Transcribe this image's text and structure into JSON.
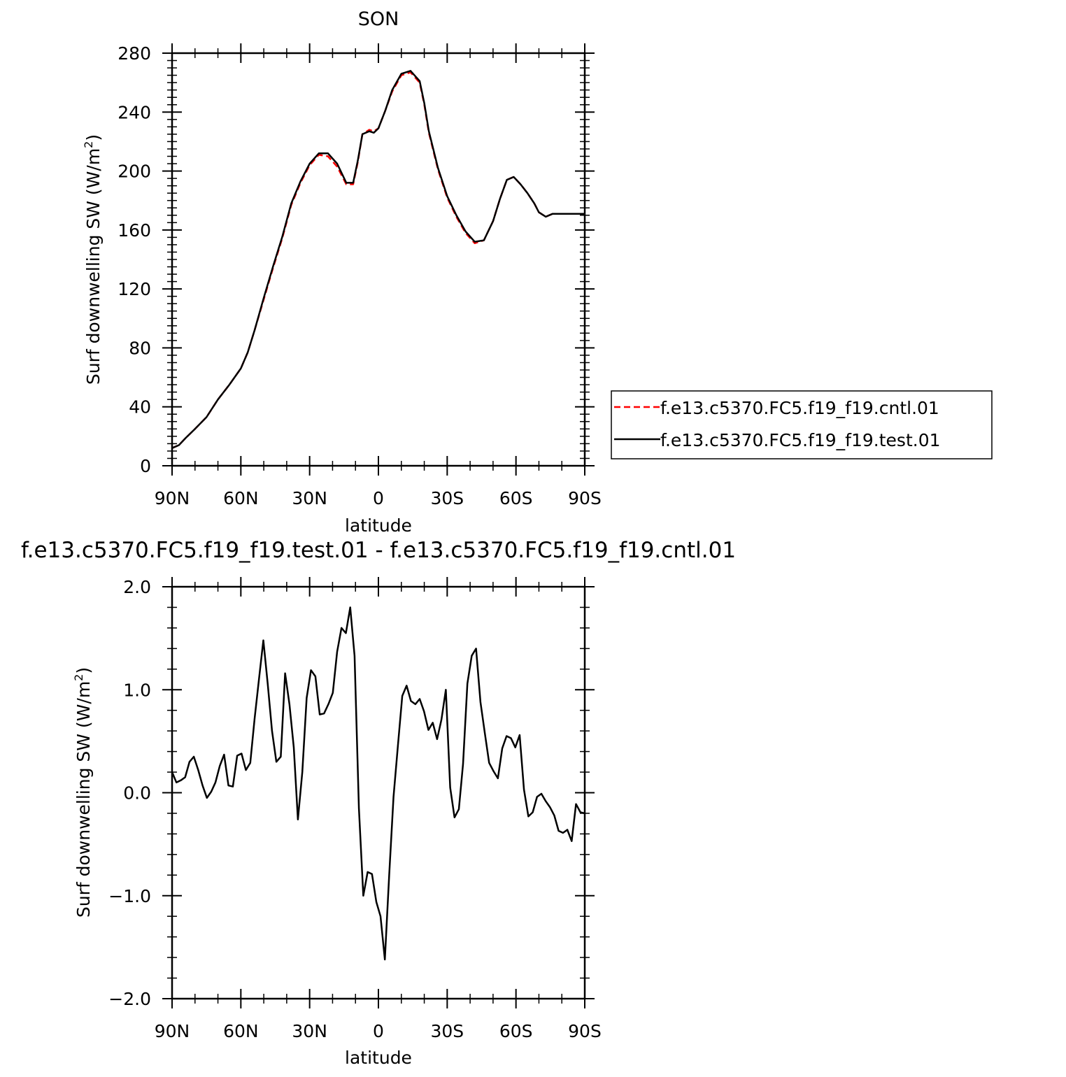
{
  "chart_data": [
    {
      "type": "line",
      "title": "SON",
      "xlabel": "latitude",
      "ylabel": "Surf downwelling SW (W/m²)",
      "ylabel_main": "Surf downwelling SW (W/m",
      "ylabel_sup": "2",
      "ylabel_tail": ")",
      "xlim": [
        90,
        -90
      ],
      "ylim": [
        0,
        280
      ],
      "x_ticks": [
        90,
        60,
        30,
        0,
        -30,
        -60,
        -90
      ],
      "x_tick_labels": [
        "90N",
        "60N",
        "30N",
        "0",
        "30S",
        "60S",
        "90S"
      ],
      "y_ticks": [
        0,
        40,
        80,
        120,
        160,
        200,
        240,
        280
      ],
      "y_tick_labels": [
        "0",
        "40",
        "80",
        "120",
        "160",
        "200",
        "240",
        "280"
      ],
      "grid": false,
      "legend_position": "right",
      "series": [
        {
          "name": "f.e13.c5370.FC5.f19_f19.cntl.01",
          "color": "#ff0000",
          "style": "dashed",
          "x": [
            90,
            87,
            84,
            80,
            75,
            70,
            65,
            60,
            57,
            54,
            50,
            46,
            42,
            38,
            34,
            30,
            26,
            22,
            18,
            14,
            11,
            9,
            7,
            4,
            2,
            0,
            -3,
            -6,
            -10,
            -14,
            -18,
            -20,
            -22,
            -26,
            -30,
            -34,
            -38,
            -42,
            -46,
            -50,
            -53,
            -56,
            -59,
            -62,
            -65,
            -68,
            -70,
            -73,
            -76,
            -80,
            -84,
            -87,
            -90
          ],
          "y": [
            12,
            14,
            19,
            25,
            33,
            45,
            55,
            66,
            77,
            92,
            113,
            134,
            154,
            177,
            192,
            204,
            211,
            210,
            203,
            191,
            191,
            206,
            225,
            228,
            227,
            229,
            241,
            254,
            265,
            267,
            260,
            245,
            226,
            201,
            182,
            169,
            158,
            151,
            153,
            166,
            181,
            194,
            196,
            191,
            185,
            178,
            172,
            169,
            171,
            171,
            171,
            171,
            171
          ]
        },
        {
          "name": "f.e13.c5370.FC5.f19_f19.test.01",
          "color": "#000000",
          "style": "solid",
          "x": [
            90,
            87,
            84,
            80,
            75,
            70,
            65,
            60,
            57,
            54,
            50,
            46,
            42,
            38,
            34,
            30,
            26,
            22,
            18,
            14,
            11,
            9,
            7,
            4,
            2,
            0,
            -3,
            -6,
            -10,
            -14,
            -18,
            -20,
            -22,
            -26,
            -30,
            -34,
            -38,
            -42,
            -46,
            -50,
            -53,
            -56,
            -59,
            -62,
            -65,
            -68,
            -70,
            -73,
            -76,
            -80,
            -84,
            -87,
            -90
          ],
          "y": [
            12,
            14,
            19,
            25,
            33,
            45,
            55,
            66,
            77,
            92,
            114,
            135,
            155,
            178,
            193,
            205,
            212,
            212,
            205,
            192,
            192,
            207,
            225,
            227,
            226,
            229,
            241,
            255,
            266,
            268,
            261,
            246,
            227,
            202,
            183,
            170,
            159,
            152,
            153,
            166,
            181,
            194,
            196,
            191,
            185,
            178,
            172,
            169,
            171,
            171,
            171,
            171,
            171
          ]
        }
      ]
    },
    {
      "type": "line",
      "title": "f.e13.c5370.FC5.f19_f19.test.01 - f.e13.c5370.FC5.f19_f19.cntl.01",
      "xlabel": "latitude",
      "ylabel": "Surf downwelling SW (W/m²)",
      "ylabel_main": "Surf downwelling SW (W/m",
      "ylabel_sup": "2",
      "ylabel_tail": ")",
      "xlim": [
        90,
        -90
      ],
      "ylim": [
        -2.0,
        2.0
      ],
      "x_ticks": [
        90,
        60,
        30,
        0,
        -30,
        -60,
        -90
      ],
      "x_tick_labels": [
        "90N",
        "60N",
        "30N",
        "0",
        "30S",
        "60S",
        "90S"
      ],
      "y_ticks": [
        -2.0,
        -1.0,
        0.0,
        1.0,
        2.0
      ],
      "y_tick_labels": [
        "−2.0",
        "−1.0",
        "0.0",
        "1.0",
        "2.0"
      ],
      "grid": false,
      "series": [
        {
          "color": "#000000",
          "style": "solid",
          "x": [
            90.0,
            88.1,
            86.2,
            84.3,
            82.4,
            80.5,
            78.6,
            76.7,
            74.8,
            72.9,
            71.1,
            69.2,
            67.3,
            65.4,
            63.5,
            61.6,
            59.7,
            57.8,
            55.9,
            54.0,
            52.1,
            50.2,
            48.3,
            46.4,
            44.5,
            42.6,
            40.7,
            38.8,
            36.9,
            35.1,
            33.2,
            31.3,
            29.4,
            27.5,
            25.6,
            23.7,
            21.8,
            19.9,
            18.0,
            16.1,
            14.2,
            12.3,
            10.4,
            8.5,
            6.6,
            4.7,
            2.8,
            0.9,
            -0.9,
            -2.8,
            -4.7,
            -6.6,
            -8.5,
            -10.4,
            -12.3,
            -14.2,
            -16.1,
            -18.0,
            -19.9,
            -21.8,
            -23.7,
            -25.6,
            -27.5,
            -29.4,
            -31.3,
            -33.2,
            -35.1,
            -36.9,
            -38.8,
            -40.7,
            -42.6,
            -44.5,
            -46.4,
            -48.3,
            -50.2,
            -52.1,
            -54.0,
            -55.9,
            -57.8,
            -59.7,
            -61.6,
            -63.5,
            -65.4,
            -67.3,
            -69.2,
            -71.1,
            -72.9,
            -74.8,
            -76.7,
            -78.6,
            -80.5,
            -82.4,
            -84.3,
            -86.2,
            -88.1,
            -90.0
          ],
          "y": [
            0.2,
            0.1,
            0.12,
            0.15,
            0.3,
            0.35,
            0.22,
            0.07,
            -0.05,
            0.01,
            0.1,
            0.26,
            0.37,
            0.07,
            0.06,
            0.36,
            0.38,
            0.22,
            0.29,
            0.72,
            1.1,
            1.48,
            1.06,
            0.6,
            0.3,
            0.35,
            1.16,
            0.86,
            0.44,
            -0.26,
            0.2,
            0.92,
            1.19,
            1.13,
            0.76,
            0.77,
            0.86,
            0.97,
            1.37,
            1.6,
            1.55,
            1.8,
            1.33,
            -0.15,
            -1.0,
            -0.77,
            -0.79,
            -1.06,
            -1.2,
            -1.62,
            -0.8,
            -0.04,
            0.46,
            0.94,
            1.04,
            0.89,
            0.86,
            0.91,
            0.79,
            0.61,
            0.68,
            0.52,
            0.71,
            1.0,
            0.05,
            -0.24,
            -0.16,
            0.28,
            1.06,
            1.33,
            1.4,
            0.88,
            0.58,
            0.29,
            0.21,
            0.14,
            0.43,
            0.55,
            0.53,
            0.44,
            0.56,
            0.03,
            -0.23,
            -0.19,
            -0.04,
            -0.01,
            -0.08,
            -0.14,
            -0.22,
            -0.37,
            -0.39,
            -0.36,
            -0.47,
            -0.11,
            -0.19,
            -0.2
          ]
        }
      ]
    }
  ]
}
